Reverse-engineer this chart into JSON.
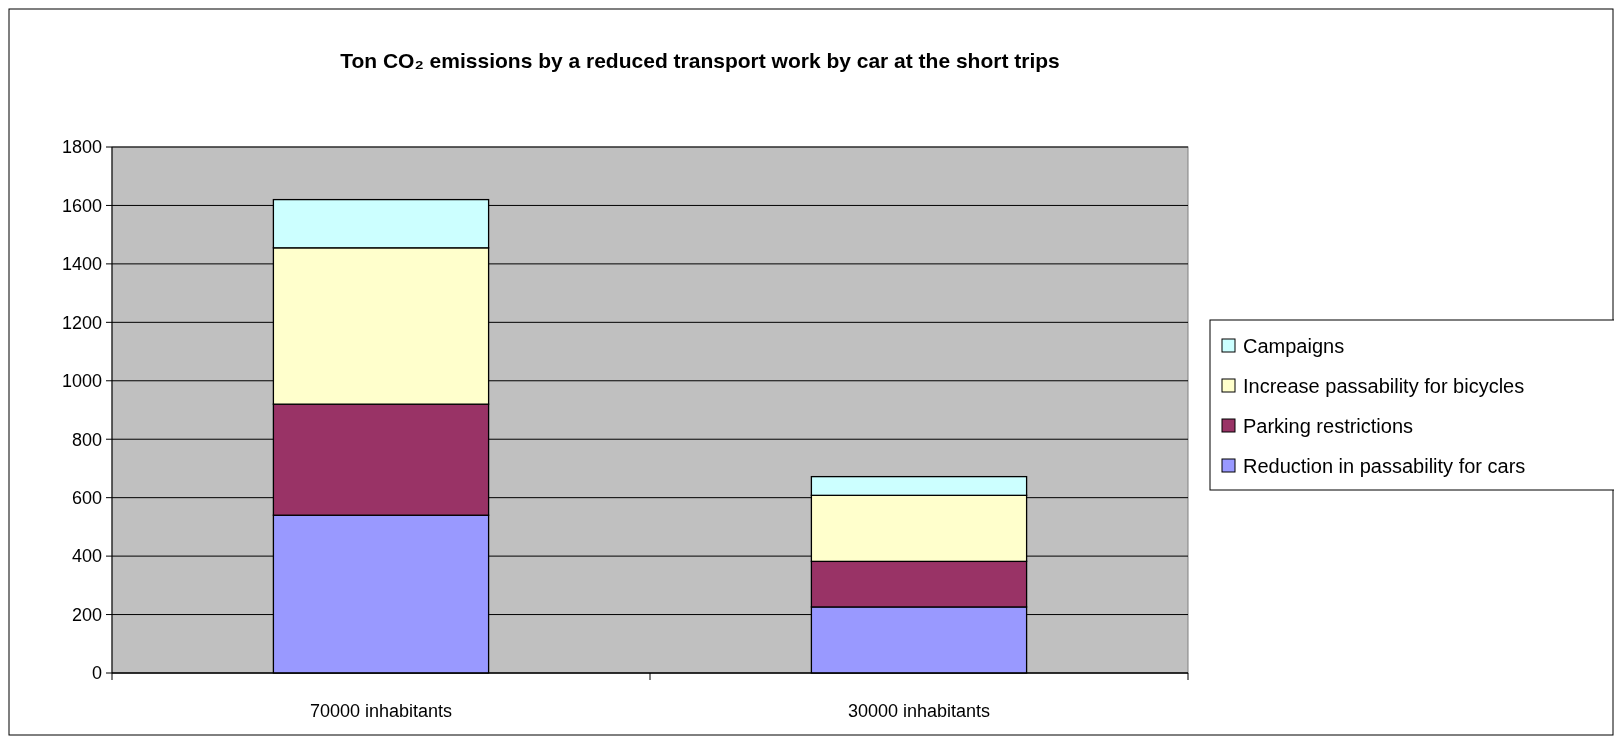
{
  "chart_data": {
    "type": "bar",
    "title": "Ton CO₂ emissions by a reduced transport work by car at the short trips",
    "categories": [
      "70000 inhabitants",
      "30000 inhabitants"
    ],
    "stacked": true,
    "series": [
      {
        "name": "Reduction in passability for cars",
        "color": "#9999ff",
        "values": [
          540,
          226
        ]
      },
      {
        "name": "Parking restrictions",
        "color": "#993366",
        "values": [
          380,
          156
        ]
      },
      {
        "name": "Increase passability for bicycles",
        "color": "#ffffcc",
        "values": [
          535,
          226
        ]
      },
      {
        "name": "Campaigns",
        "color": "#ccffff",
        "values": [
          165,
          64
        ]
      }
    ],
    "ylim": [
      0,
      1800
    ],
    "yticks": [
      0,
      200,
      400,
      600,
      800,
      1000,
      1200,
      1400,
      1600,
      1800
    ],
    "grid": "y",
    "legend": "right"
  }
}
